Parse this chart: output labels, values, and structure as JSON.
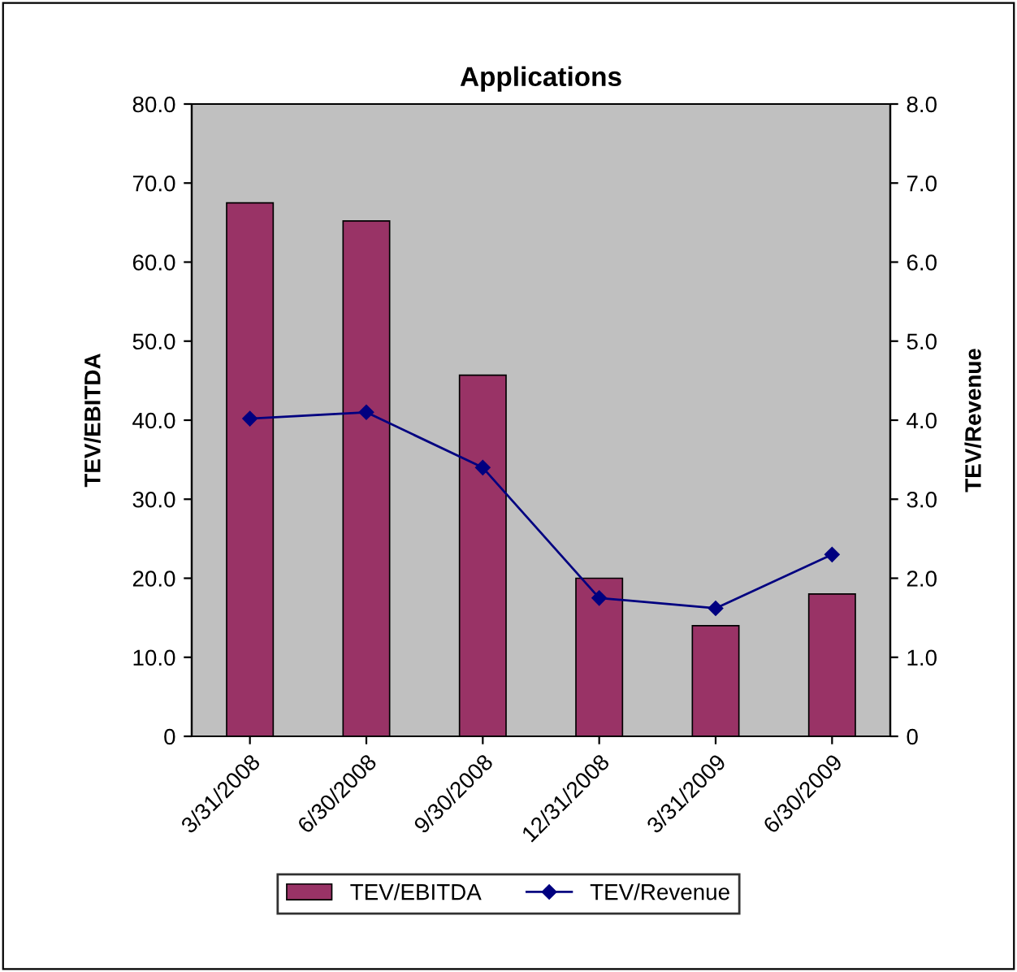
{
  "chart_data": {
    "type": "bar",
    "title": "Applications",
    "ylabel": "TEV/EBITDA",
    "y2label": "TEV/Revenue",
    "categories": [
      "3/31/2008",
      "6/30/2008",
      "9/30/2008",
      "12/31/2008",
      "3/31/2009",
      "6/30/2009"
    ],
    "series": [
      {
        "name": "TEV/EBITDA",
        "color": "#993366",
        "values": [
          67.5,
          65.2,
          45.7,
          20.0,
          14.0,
          18.0
        ]
      },
      {
        "name": "TEV/Revenue",
        "type": "line",
        "axis": "y2",
        "color": "#000080",
        "marker": "diamond",
        "values": [
          4.02,
          4.1,
          3.4,
          1.75,
          1.62,
          2.3
        ]
      }
    ],
    "ylim": [
      0,
      80
    ],
    "yticks": [
      {
        "value": 0,
        "label": "0"
      },
      {
        "value": 10,
        "label": "10.0"
      },
      {
        "value": 20,
        "label": "20.0"
      },
      {
        "value": 30,
        "label": "30.0"
      },
      {
        "value": 40,
        "label": "40.0"
      },
      {
        "value": 50,
        "label": "50.0"
      },
      {
        "value": 60,
        "label": "60.0"
      },
      {
        "value": 70,
        "label": "70.0"
      },
      {
        "value": 80,
        "label": "80.0"
      }
    ],
    "y2lim": [
      0,
      8
    ],
    "y2ticks": [
      0,
      {
        "value": 1,
        "label": "1.0"
      },
      {
        "value": 2,
        "label": "2.0"
      },
      {
        "value": 3,
        "label": "3.0"
      },
      {
        "value": 4,
        "label": "4.0"
      },
      {
        "value": 5,
        "label": "5.0"
      },
      {
        "value": 6,
        "label": "6.0"
      },
      {
        "value": 7,
        "label": "7.0"
      },
      {
        "value": 8,
        "label": "8.0"
      }
    ],
    "grid": false,
    "legend": "bottom"
  }
}
